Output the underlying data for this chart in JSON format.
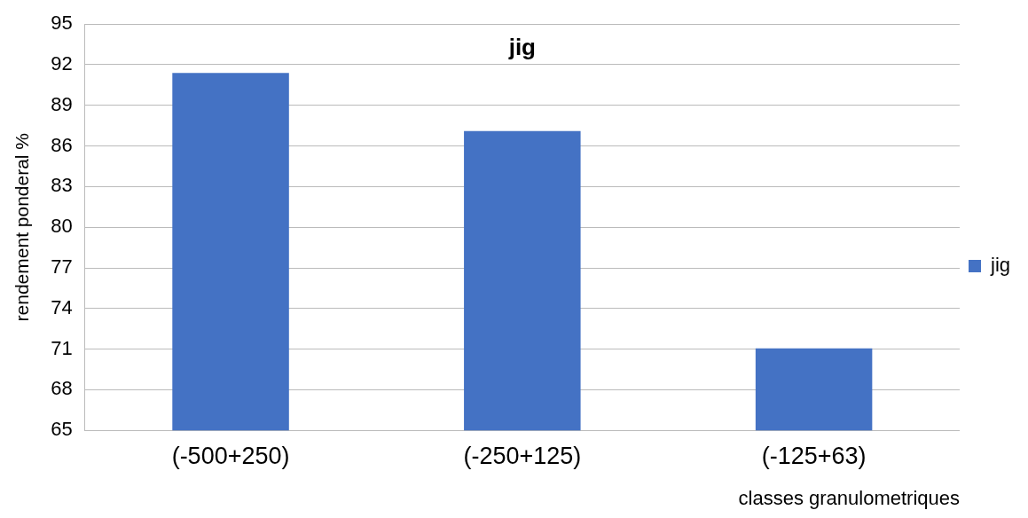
{
  "chart_data": {
    "type": "bar",
    "title": "jig",
    "xlabel": "classes granulometriques",
    "ylabel": "rendement ponderal %",
    "categories": [
      "(-500+250)",
      "(-250+125)",
      "(-125+63)"
    ],
    "series": [
      {
        "name": "jig",
        "color": "#4472c4",
        "values": [
          91.4,
          87.1,
          71.05
        ]
      }
    ],
    "ylim": [
      65,
      95
    ],
    "yticks": [
      65,
      68,
      71,
      74,
      77,
      80,
      83,
      86,
      89,
      92,
      95
    ],
    "grid": "y",
    "legend": "right"
  }
}
